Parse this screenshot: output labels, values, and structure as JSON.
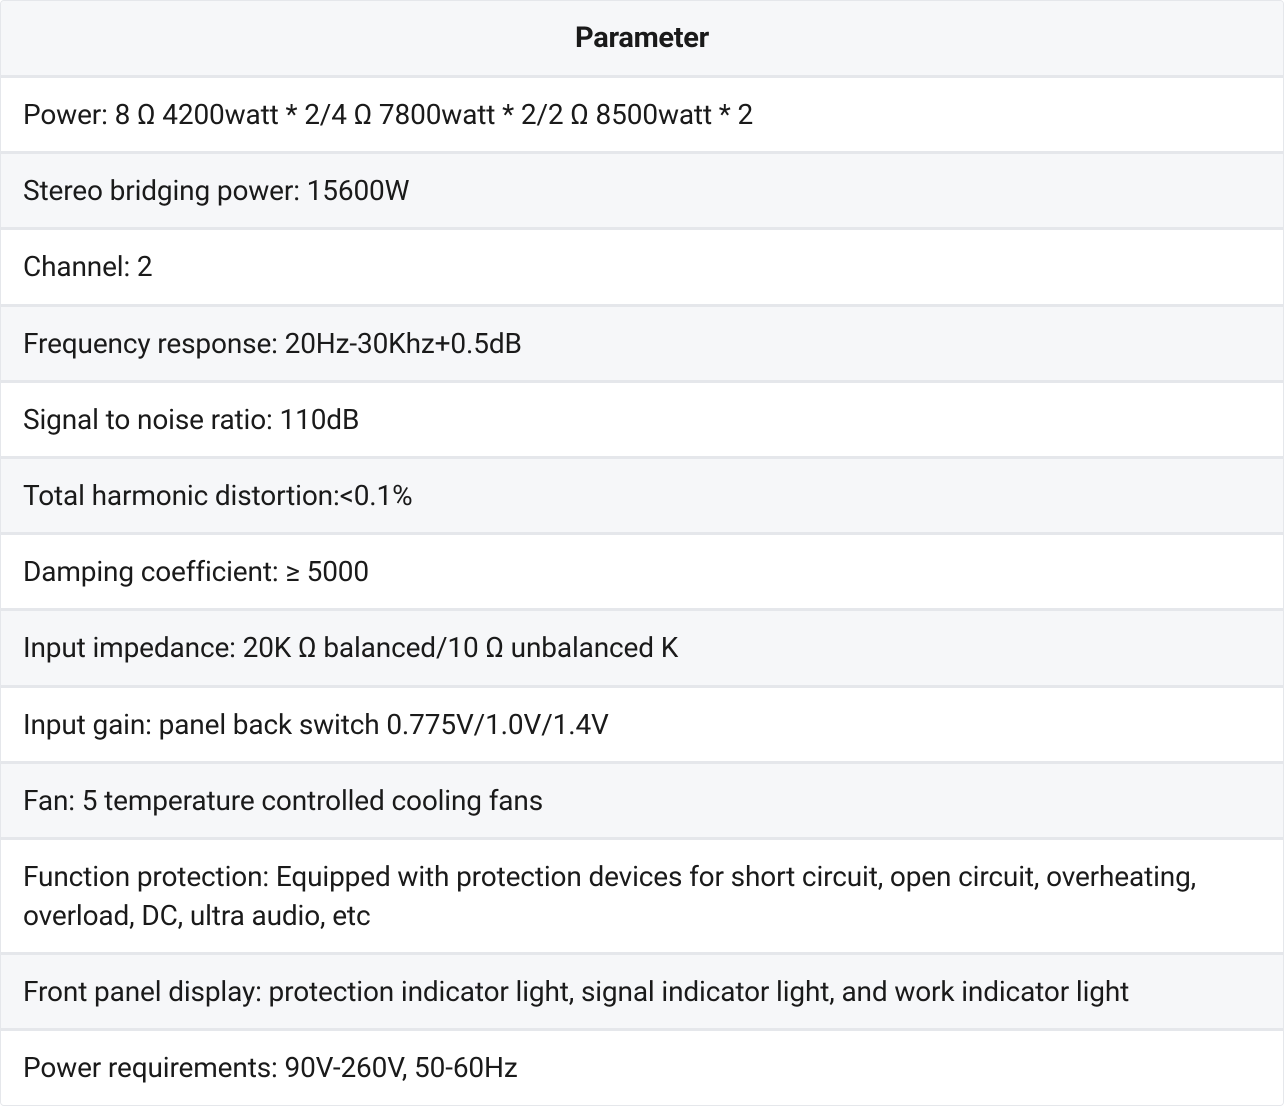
{
  "table": {
    "header": "Parameter",
    "header_bg": "#f6f7f9",
    "row_alt_bg_white": "#ffffff",
    "row_alt_bg_grey": "#f6f7f9",
    "border_color": "#e5e7eb",
    "text_color": "#1a1a1a",
    "header_fontsize": 29,
    "row_fontsize": 28,
    "rows": [
      "Power: 8 Ω 4200watt * 2/4 Ω 7800watt * 2/2 Ω 8500watt * 2",
      "Stereo bridging power: 15600W",
      "Channel: 2",
      "Frequency response: 20Hz-30Khz+0.5dB",
      "Signal to noise ratio: 110dB",
      "Total harmonic distortion:<0.1%",
      "Damping coefficient: ≥ 5000",
      "Input impedance: 20K Ω balanced/10 Ω unbalanced K",
      "Input gain: panel back switch 0.775V/1.0V/1.4V",
      "Fan: 5 temperature controlled cooling fans",
      "Function protection: Equipped with protection devices for short circuit, open circuit, overheating, overload, DC, ultra audio, etc",
      "Front panel display: protection indicator light, signal indicator light, and work indicator light",
      "Power requirements: 90V-260V, 50-60Hz"
    ]
  }
}
